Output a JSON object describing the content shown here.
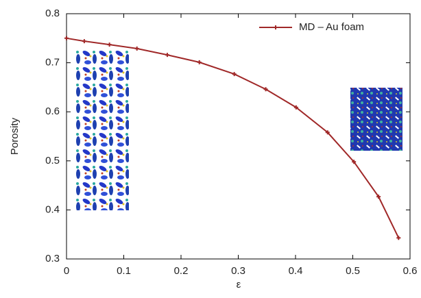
{
  "chart_data": {
    "type": "line",
    "x_label": "ε",
    "y_label": "Porosity",
    "x": [
      0,
      0.031,
      0.075,
      0.123,
      0.176,
      0.232,
      0.293,
      0.348,
      0.401,
      0.456,
      0.502,
      0.545,
      0.58
    ],
    "series": [
      {
        "name": "MD – Au foam",
        "color": "#a02828",
        "values": [
          0.75,
          0.744,
          0.737,
          0.729,
          0.716,
          0.701,
          0.677,
          0.646,
          0.609,
          0.558,
          0.498,
          0.427,
          0.343
        ]
      }
    ],
    "xlim": [
      0,
      0.6
    ],
    "xticks": [
      0,
      0.1,
      0.2,
      0.3,
      0.4,
      0.5,
      0.6
    ],
    "ylim": [
      0.3,
      0.8
    ],
    "yticks": [
      0.3,
      0.4,
      0.5,
      0.6,
      0.7,
      0.8
    ],
    "grid": false,
    "legend": "top-right"
  }
}
